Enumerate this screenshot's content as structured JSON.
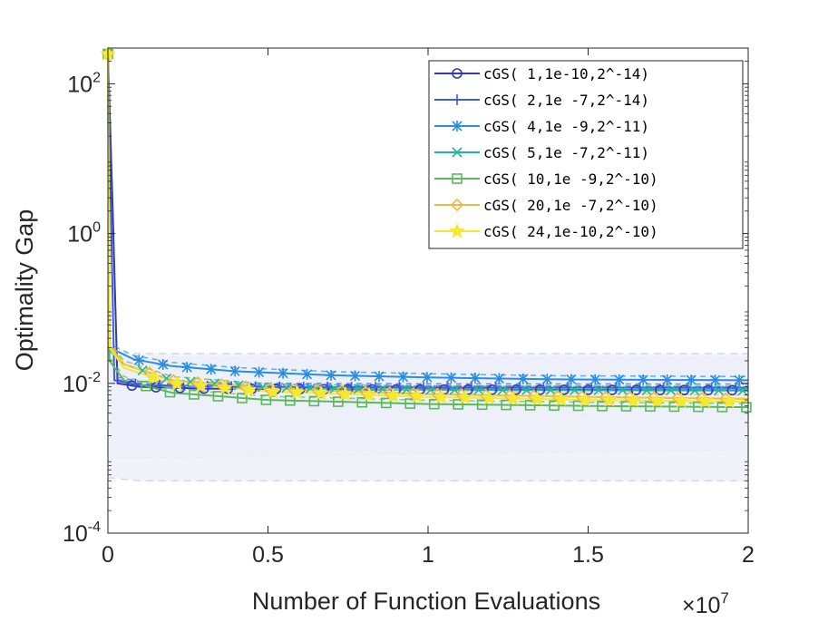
{
  "chart_data": {
    "type": "line",
    "xlabel": "Number of Function Evaluations",
    "x_multiplier_base": "×10",
    "x_multiplier_exp": "7",
    "ylabel": "Optimality Gap",
    "y_scale": "log",
    "xlim": [
      0,
      20000000
    ],
    "ylim": [
      0.0001,
      300
    ],
    "x_ticks": [
      {
        "value": 0,
        "label": "0"
      },
      {
        "value": 5000000,
        "label": "0.5"
      },
      {
        "value": 10000000,
        "label": "1"
      },
      {
        "value": 15000000,
        "label": "1.5"
      },
      {
        "value": 20000000,
        "label": "2"
      }
    ],
    "y_ticks": [
      {
        "value": 0.0001,
        "base": "10",
        "exp": "-4"
      },
      {
        "value": 0.01,
        "base": "10",
        "exp": "-2"
      },
      {
        "value": 1,
        "base": "10",
        "exp": "0"
      },
      {
        "value": 100,
        "base": "10",
        "exp": "2"
      }
    ],
    "grid": false,
    "legend_position": "top-right",
    "bands": [
      {
        "color": "#e9ebf7",
        "upper": [
          [
            0,
            0.025
          ],
          [
            1000000,
            0.022
          ],
          [
            5000000,
            0.022
          ],
          [
            20000000,
            0.022
          ]
        ],
        "lower": [
          [
            0,
            0.001
          ],
          [
            20000000,
            0.0013
          ]
        ]
      },
      {
        "color": "#eef0f9",
        "upper": [
          [
            0,
            0.025
          ],
          [
            20000000,
            0.025
          ]
        ],
        "lower": [
          [
            0,
            0.00055
          ],
          [
            1000000,
            0.0005
          ],
          [
            20000000,
            0.0005
          ]
        ]
      }
    ],
    "series": [
      {
        "name": "cGS(  1,1e-10,2^-14)",
        "color": "#3737b4",
        "marker": "circle",
        "values": [
          [
            0,
            250
          ],
          [
            150000,
            2.0
          ],
          [
            300000,
            0.01
          ],
          [
            1000000,
            0.009
          ],
          [
            3000000,
            0.0085
          ],
          [
            8000000,
            0.0083
          ],
          [
            14000000,
            0.0082
          ],
          [
            20000000,
            0.0081
          ]
        ]
      },
      {
        "name": "cGS(  2,1e -7,2^-14)",
        "color": "#3a5ee0",
        "marker": "plus",
        "values": [
          [
            0,
            250
          ],
          [
            100000,
            1.5
          ],
          [
            200000,
            0.011
          ],
          [
            1000000,
            0.0095
          ],
          [
            4000000,
            0.009
          ],
          [
            10000000,
            0.0088
          ],
          [
            20000000,
            0.0087
          ]
        ]
      },
      {
        "name": "cGS(  4,1e -9,2^-11)",
        "color": "#2a8de0",
        "marker": "asterisk",
        "values": [
          [
            0,
            250
          ],
          [
            50000,
            0.03
          ],
          [
            800000,
            0.021
          ],
          [
            2000000,
            0.017
          ],
          [
            4000000,
            0.0145
          ],
          [
            7000000,
            0.0128
          ],
          [
            10000000,
            0.012
          ],
          [
            14000000,
            0.0113
          ],
          [
            20000000,
            0.011
          ]
        ]
      },
      {
        "name": "cGS(  5,1e -7,2^-11)",
        "color": "#1eb4a8",
        "marker": "x",
        "values": [
          [
            0,
            250
          ],
          [
            50000,
            0.028
          ],
          [
            500000,
            0.018
          ],
          [
            2000000,
            0.011
          ],
          [
            5000000,
            0.0088
          ],
          [
            10000000,
            0.0082
          ],
          [
            20000000,
            0.008
          ]
        ]
      },
      {
        "name": "cGS( 10,1e -9,2^-10)",
        "color": "#5cb85c",
        "marker": "square",
        "values": [
          [
            0,
            250
          ],
          [
            50000,
            0.02
          ],
          [
            500000,
            0.011
          ],
          [
            2000000,
            0.0075
          ],
          [
            5000000,
            0.006
          ],
          [
            10000000,
            0.0053
          ],
          [
            15000000,
            0.005
          ],
          [
            20000000,
            0.0048
          ]
        ]
      },
      {
        "name": "cGS( 20,1e -7,2^-10)",
        "color": "#f0b840",
        "marker": "diamond",
        "values": [
          [
            0,
            250
          ],
          [
            50000,
            0.032
          ],
          [
            500000,
            0.018
          ],
          [
            2000000,
            0.011
          ],
          [
            5000000,
            0.0085
          ],
          [
            10000000,
            0.0072
          ],
          [
            15000000,
            0.0066
          ],
          [
            20000000,
            0.0062
          ]
        ]
      },
      {
        "name": "cGS( 24,1e-10,2^-10)",
        "color": "#f4e830",
        "marker": "star",
        "values": [
          [
            0,
            250
          ],
          [
            50000,
            0.03
          ],
          [
            500000,
            0.016
          ],
          [
            2000000,
            0.01
          ],
          [
            5000000,
            0.0078
          ],
          [
            10000000,
            0.0066
          ],
          [
            15000000,
            0.006
          ],
          [
            20000000,
            0.0057
          ]
        ]
      }
    ]
  }
}
